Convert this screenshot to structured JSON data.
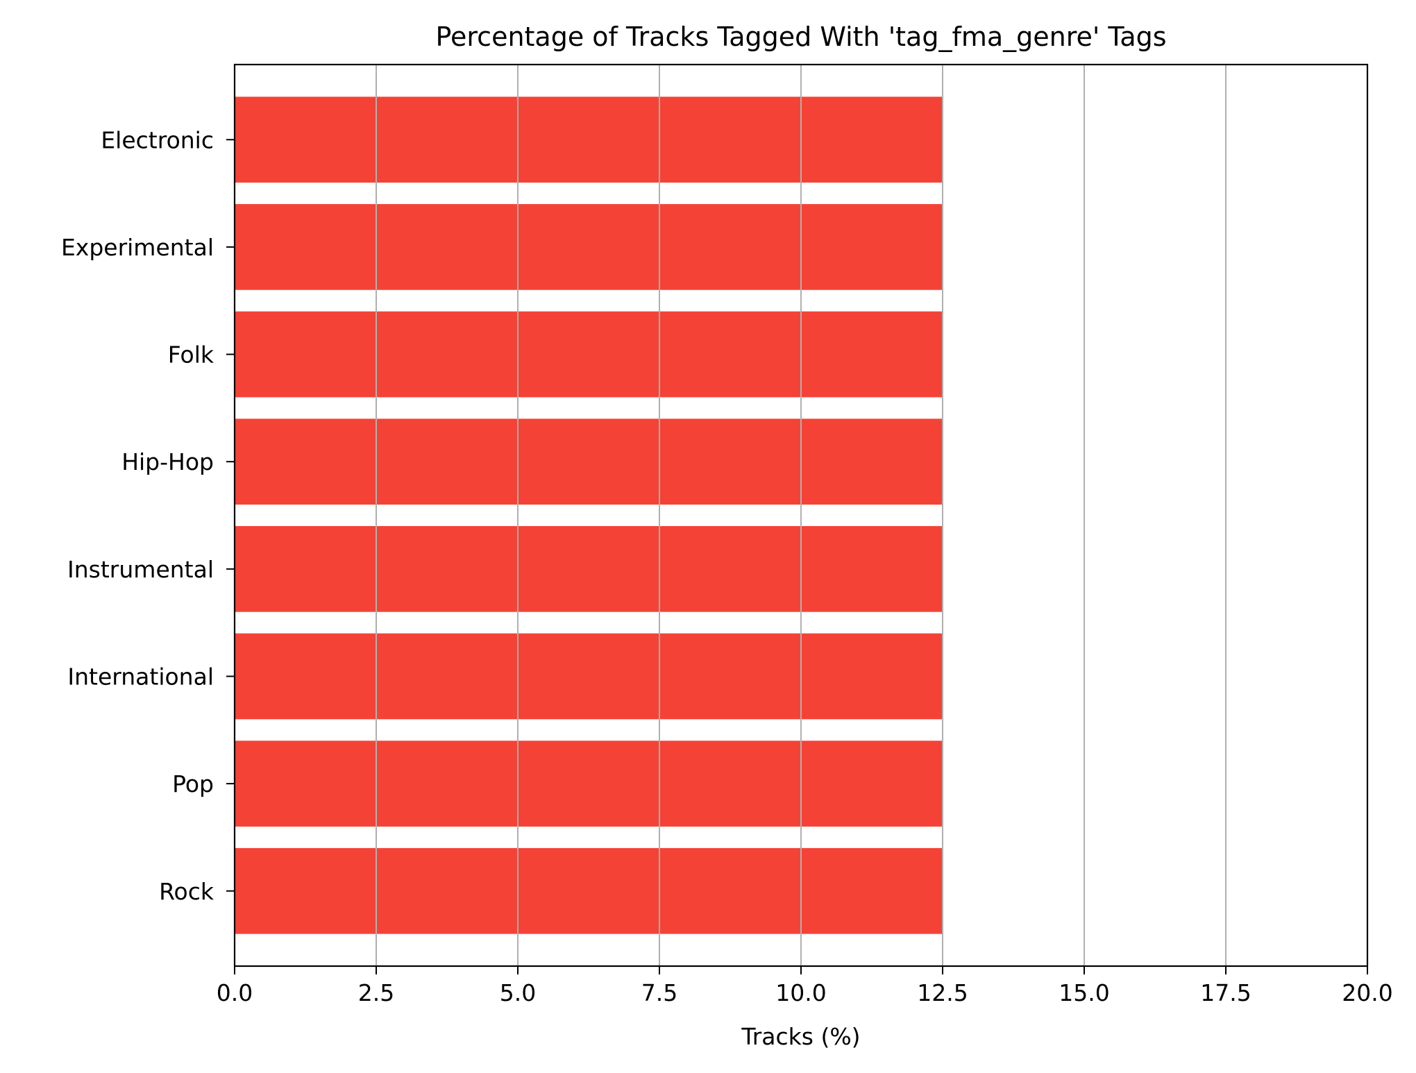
{
  "chart_data": {
    "type": "bar",
    "orientation": "horizontal",
    "title": "Percentage of Tracks Tagged With 'tag_fma_genre' Tags",
    "xlabel": "Tracks (%)",
    "ylabel": "",
    "categories": [
      "Electronic",
      "Experimental",
      "Folk",
      "Hip-Hop",
      "Instrumental",
      "International",
      "Pop",
      "Rock"
    ],
    "values": [
      12.5,
      12.5,
      12.5,
      12.5,
      12.5,
      12.5,
      12.5,
      12.5
    ],
    "xlim": [
      0,
      20
    ],
    "xticks": [
      0,
      2.5,
      5,
      7.5,
      10,
      12.5,
      15,
      17.5,
      20
    ],
    "xtick_labels": [
      "0.0",
      "2.5",
      "5.0",
      "7.5",
      "10.0",
      "12.5",
      "15.0",
      "17.5",
      "20.0"
    ],
    "grid": "x",
    "bar_color": "#f44336",
    "grid_color": "#b0b0b0"
  }
}
